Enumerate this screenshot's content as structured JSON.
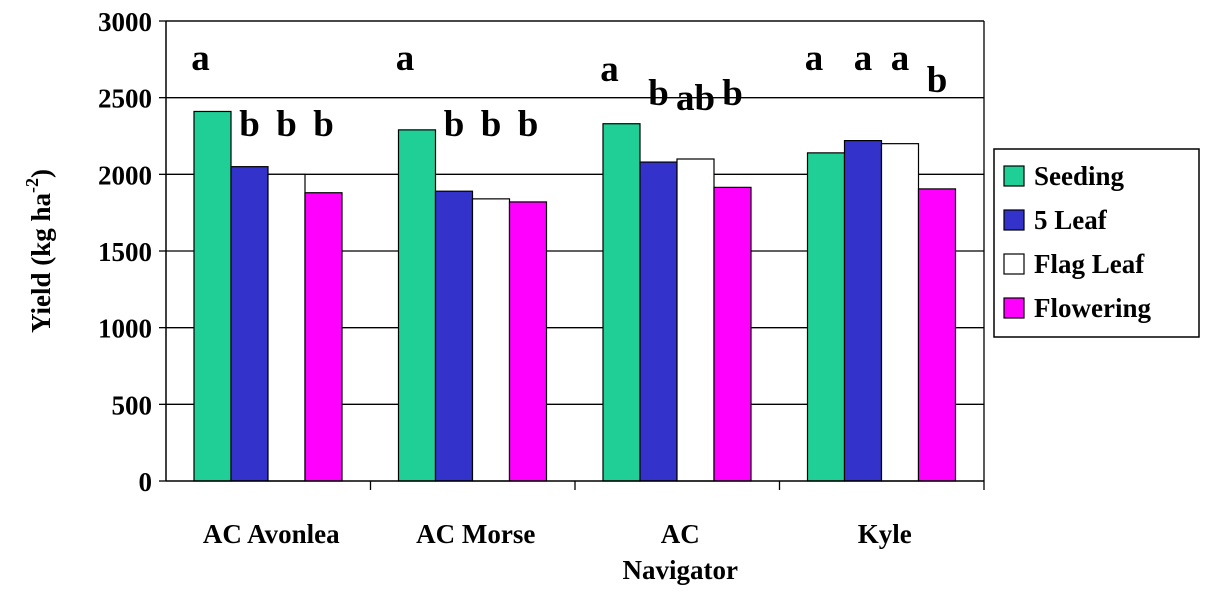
{
  "chart_data": {
    "type": "bar",
    "categories": [
      "AC Avonlea",
      "AC Morse",
      "AC Navigator",
      "Kyle"
    ],
    "category_lines": [
      [
        "AC Avonlea"
      ],
      [
        "AC Morse"
      ],
      [
        "AC",
        "Navigator"
      ],
      [
        "Kyle"
      ]
    ],
    "series": [
      {
        "name": "Seeding",
        "color": "#1fcf96",
        "values": [
          2410,
          2290,
          2330,
          2140
        ]
      },
      {
        "name": "5 Leaf",
        "color": "#3333cc",
        "values": [
          2050,
          1890,
          2080,
          2220
        ]
      },
      {
        "name": "Flag Leaf",
        "color": "#ffffff",
        "values": [
          2000,
          1840,
          2100,
          2200
        ]
      },
      {
        "name": "Flowering",
        "color": "#ff00ff",
        "values": [
          1880,
          1820,
          1915,
          1905
        ]
      }
    ],
    "significance_letters": [
      [
        "a",
        "b",
        "b",
        "b"
      ],
      [
        "a",
        "b",
        "b",
        "b"
      ],
      [
        "a",
        "b",
        "ab",
        "b"
      ],
      [
        "a",
        "a",
        "a",
        "b"
      ]
    ],
    "ylabel": "Yield (kg ha",
    "ylabel_superscript": "-2",
    "ylabel_close": ")",
    "ylim": [
      0,
      3000
    ],
    "yticks": [
      0,
      500,
      1000,
      1500,
      2000,
      2500,
      3000
    ],
    "grid": true,
    "legend": "right"
  }
}
